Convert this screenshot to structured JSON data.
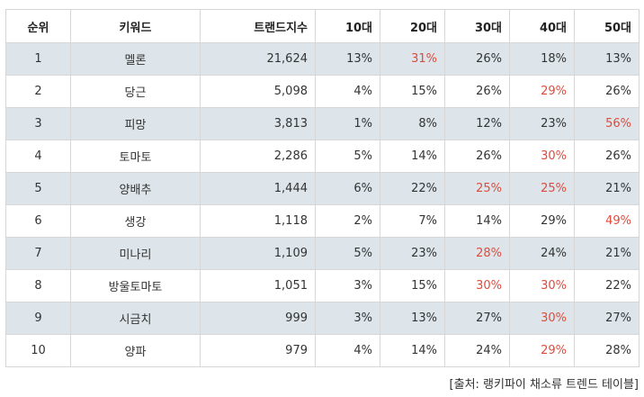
{
  "table": {
    "headers": [
      "순위",
      "키워드",
      "트랜드지수",
      "10대",
      "20대",
      "30대",
      "40대",
      "50대"
    ],
    "rows": [
      {
        "rank": "1",
        "keyword": "멜론",
        "index": "21,624",
        "ages": [
          "13%",
          "31%",
          "26%",
          "18%",
          "13%"
        ],
        "highlight": [
          false,
          true,
          false,
          false,
          false
        ]
      },
      {
        "rank": "2",
        "keyword": "당근",
        "index": "5,098",
        "ages": [
          "4%",
          "15%",
          "26%",
          "29%",
          "26%"
        ],
        "highlight": [
          false,
          false,
          false,
          true,
          false
        ]
      },
      {
        "rank": "3",
        "keyword": "피망",
        "index": "3,813",
        "ages": [
          "1%",
          "8%",
          "12%",
          "23%",
          "56%"
        ],
        "highlight": [
          false,
          false,
          false,
          false,
          true
        ]
      },
      {
        "rank": "4",
        "keyword": "토마토",
        "index": "2,286",
        "ages": [
          "5%",
          "14%",
          "26%",
          "30%",
          "26%"
        ],
        "highlight": [
          false,
          false,
          false,
          true,
          false
        ]
      },
      {
        "rank": "5",
        "keyword": "양배추",
        "index": "1,444",
        "ages": [
          "6%",
          "22%",
          "25%",
          "25%",
          "21%"
        ],
        "highlight": [
          false,
          false,
          true,
          true,
          false
        ]
      },
      {
        "rank": "6",
        "keyword": "생강",
        "index": "1,118",
        "ages": [
          "2%",
          "7%",
          "14%",
          "29%",
          "49%"
        ],
        "highlight": [
          false,
          false,
          false,
          false,
          true
        ]
      },
      {
        "rank": "7",
        "keyword": "미나리",
        "index": "1,109",
        "ages": [
          "5%",
          "23%",
          "28%",
          "24%",
          "21%"
        ],
        "highlight": [
          false,
          false,
          true,
          false,
          false
        ]
      },
      {
        "rank": "8",
        "keyword": "방울토마토",
        "index": "1,051",
        "ages": [
          "3%",
          "15%",
          "30%",
          "30%",
          "22%"
        ],
        "highlight": [
          false,
          false,
          true,
          true,
          false
        ]
      },
      {
        "rank": "9",
        "keyword": "시금치",
        "index": "999",
        "ages": [
          "3%",
          "13%",
          "27%",
          "30%",
          "27%"
        ],
        "highlight": [
          false,
          false,
          false,
          true,
          false
        ]
      },
      {
        "rank": "10",
        "keyword": "양파",
        "index": "979",
        "ages": [
          "4%",
          "14%",
          "24%",
          "29%",
          "28%"
        ],
        "highlight": [
          false,
          false,
          false,
          true,
          false
        ]
      }
    ]
  },
  "colors": {
    "row_shade": "#dde5ea",
    "highlight_text": "#e04a3c",
    "border": "#d6d6d6"
  },
  "source": "[출처: 랭키파이 채소류 트렌드 테이블]"
}
